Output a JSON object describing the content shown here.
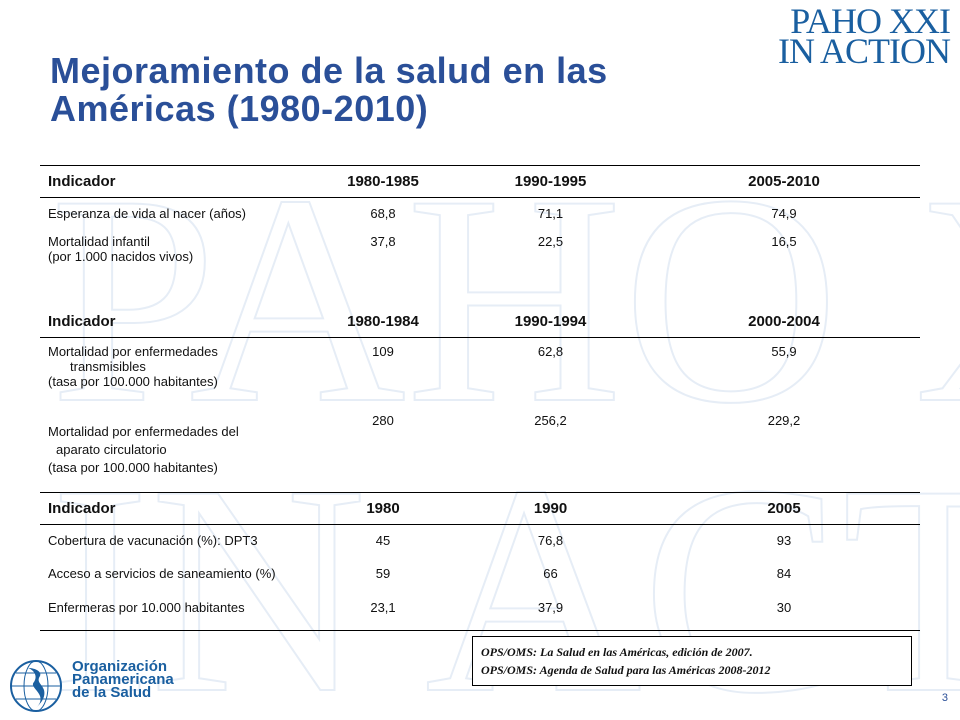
{
  "logo": {
    "line1": "PAHO XXI",
    "line2": "IN ACTION"
  },
  "title": {
    "line1": "Mejoramiento de la salud en las",
    "line2": "Américas (1980-2010)"
  },
  "table": {
    "section1": {
      "headers": [
        "Indicador",
        "1980-1985",
        "1990-1995",
        "2005-2010"
      ],
      "rows": [
        {
          "label1": "Esperanza de vida al nacer (años)",
          "v": [
            "68,8",
            "71,1",
            "74,9"
          ]
        },
        {
          "label1": "Mortalidad infantil",
          "label2": "(por 1.000 nacidos vivos)",
          "v": [
            "37,8",
            "22,5",
            "16,5"
          ]
        }
      ]
    },
    "section2": {
      "headers": [
        "Indicador",
        "1980-1984",
        "1990-1994",
        "2000-2004"
      ],
      "rows": [
        {
          "label1": "Mortalidad por enfermedades",
          "label2": "transmisibles",
          "label3": "(tasa por 100.000 habitantes)",
          "v": [
            "109",
            "62,8",
            "55,9"
          ]
        },
        {
          "label1": "Mortalidad por enfermedades del",
          "label2": "aparato circulatorio",
          "label3": "(tasa por 100.000 habitantes)",
          "v": [
            "280",
            "256,2",
            "229,2"
          ]
        }
      ]
    },
    "section3": {
      "headers": [
        "Indicador",
        "1980",
        "1990",
        "2005"
      ],
      "rows": [
        {
          "label1": "Cobertura de vacunación (%): DPT3",
          "v": [
            "45",
            "76,8",
            "93"
          ]
        },
        {
          "label1": "Acceso a servicios de saneamiento (%)",
          "v": [
            "59",
            "66",
            "84"
          ]
        },
        {
          "label1": "Enfermeras por 10.000 habitantes",
          "v": [
            "23,1",
            "37,9",
            "30"
          ]
        }
      ]
    }
  },
  "references": {
    "line1": "OPS/OMS: La Salud en las Américas, edición de 2007.",
    "line2": "OPS/OMS: Agenda de Salud para las Américas 2008-2012"
  },
  "organization": {
    "line1": "Organización",
    "line2": "Panamericana",
    "line3": "de la Salud"
  },
  "page_number": "3",
  "colors": {
    "accent": "#2a4f98",
    "logo": "#1a5fa0"
  }
}
